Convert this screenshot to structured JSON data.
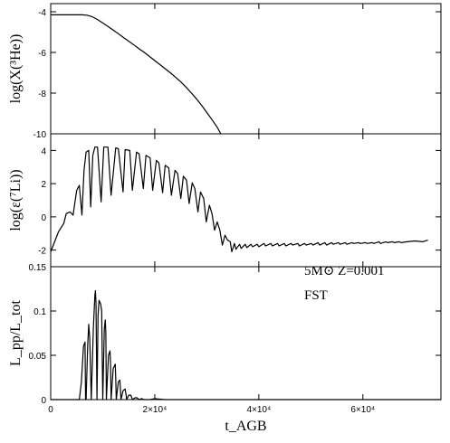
{
  "chart_data": {
    "type": "line",
    "title": "",
    "xlabel": "t_AGB",
    "xlim": [
      0,
      75000
    ],
    "x_ticks": [
      {
        "value": 0,
        "label": "0"
      },
      {
        "value": 20000,
        "label": "2×10⁴"
      },
      {
        "value": 40000,
        "label": "4×10⁴"
      },
      {
        "value": 60000,
        "label": "6×10⁴"
      }
    ],
    "panels": [
      {
        "ylabel": "log(X(³He))",
        "ylim": [
          -10,
          -3.6
        ],
        "y_ticks": [
          {
            "value": -4,
            "label": "-4"
          },
          {
            "value": -6,
            "label": "-6"
          },
          {
            "value": -8,
            "label": "-8"
          },
          {
            "value": -10,
            "label": "-10"
          }
        ],
        "series": [
          {
            "x": [
              0,
              2000,
              4000,
              6000,
              7000,
              8000,
              9000,
              10000,
              11000,
              12000,
              13000,
              14000,
              15000,
              16000,
              17000,
              18000,
              19000,
              20000,
              21000,
              22000,
              23000,
              24000,
              25000,
              26000,
              27000,
              28000,
              29000,
              30000,
              31000,
              32000,
              32700
            ],
            "y": [
              -4.15,
              -4.15,
              -4.15,
              -4.15,
              -4.17,
              -4.25,
              -4.38,
              -4.55,
              -4.72,
              -4.9,
              -5.08,
              -5.27,
              -5.45,
              -5.63,
              -5.82,
              -6.0,
              -6.2,
              -6.4,
              -6.6,
              -6.8,
              -7.0,
              -7.22,
              -7.45,
              -7.7,
              -7.98,
              -8.28,
              -8.6,
              -8.95,
              -9.3,
              -9.68,
              -10.0
            ]
          }
        ]
      },
      {
        "ylabel": "log(ε(⁷Li))",
        "ylim": [
          -3,
          5
        ],
        "y_ticks": [
          {
            "value": 4,
            "label": "4"
          },
          {
            "value": 2,
            "label": "2"
          },
          {
            "value": 0,
            "label": "0"
          },
          {
            "value": -2,
            "label": "-2"
          }
        ],
        "series": [
          {
            "x": [
              0,
              500,
              1500,
              2500,
              3000,
              3700,
              4300,
              5000,
              5500,
              6000,
              6400,
              6800,
              7300,
              7700,
              8100,
              8500,
              9000,
              9700,
              10200,
              11000,
              11600,
              12500,
              13000,
              13900,
              14300,
              15200,
              15700,
              16500,
              17000,
              17800,
              18300,
              19100,
              19600,
              20300,
              20800,
              21500,
              22000,
              22700,
              23200,
              23900,
              24400,
              25000,
              25500,
              26100,
              26600,
              27200,
              27700,
              28300,
              28800,
              29400,
              29900,
              30500,
              31000,
              31500,
              32000,
              32500,
              33000,
              33500,
              34000,
              34500,
              34800,
              35300,
              35600,
              36300,
              36600,
              37400,
              37700,
              38500,
              38800,
              39700,
              40000,
              41000,
              41300,
              42300,
              42600,
              43600,
              43900,
              44900,
              45200,
              46200,
              46500,
              47500,
              47800,
              48800,
              49100,
              50100,
              50400,
              51400,
              51700,
              52700,
              53000,
              54000,
              54300,
              55300,
              55600,
              56600,
              56900,
              57900,
              58200,
              59200,
              59500,
              60500,
              60800,
              61800,
              62100,
              63100,
              63400,
              64400,
              64700,
              65700,
              66000,
              67000,
              67300,
              68500,
              70000,
              71500,
              72500
            ],
            "y": [
              -2.1,
              -1.7,
              -0.9,
              -0.4,
              0.2,
              0.3,
              0.1,
              1.6,
              1.9,
              0.1,
              2.8,
              3.9,
              4.0,
              0.6,
              3.7,
              4.2,
              4.2,
              0.9,
              4.2,
              4.2,
              1.3,
              4.15,
              4.1,
              1.5,
              4.05,
              4.0,
              1.6,
              3.9,
              3.8,
              1.7,
              3.7,
              3.55,
              1.6,
              3.4,
              3.25,
              1.45,
              3.1,
              2.95,
              1.3,
              2.8,
              2.6,
              1.1,
              2.45,
              2.2,
              0.8,
              2.05,
              1.7,
              0.3,
              1.5,
              1.1,
              -0.3,
              0.7,
              0.2,
              -0.8,
              -0.3,
              -0.8,
              -1.7,
              -1.1,
              -1.4,
              -1.5,
              -2.1,
              -1.6,
              -1.95,
              -1.65,
              -1.9,
              -1.65,
              -1.85,
              -1.65,
              -1.8,
              -1.65,
              -1.8,
              -1.6,
              -1.75,
              -1.6,
              -1.75,
              -1.6,
              -1.75,
              -1.6,
              -1.75,
              -1.6,
              -1.7,
              -1.6,
              -1.75,
              -1.6,
              -1.7,
              -1.6,
              -1.7,
              -1.55,
              -1.7,
              -1.55,
              -1.7,
              -1.55,
              -1.65,
              -1.55,
              -1.65,
              -1.55,
              -1.65,
              -1.55,
              -1.6,
              -1.55,
              -1.6,
              -1.55,
              -1.6,
              -1.55,
              -1.6,
              -1.5,
              -1.6,
              -1.5,
              -1.55,
              -1.5,
              -1.55,
              -1.5,
              -1.55,
              -1.5,
              -1.45,
              -1.5,
              -1.4
            ]
          }
        ]
      },
      {
        "ylabel": "L_pp/L_tot",
        "ylim": [
          0,
          0.15
        ],
        "y_ticks": [
          {
            "value": 0.15,
            "label": "0.15"
          },
          {
            "value": 0.1,
            "label": "0.1"
          },
          {
            "value": 0.05,
            "label": "0.05"
          },
          {
            "value": 0,
            "label": "0"
          }
        ],
        "series": [
          {
            "x": [
              0,
              5500,
              5900,
              6300,
              6600,
              6700,
              6800,
              7100,
              7300,
              7500,
              7800,
              8200,
              8500,
              8600,
              8700,
              8900,
              9100,
              9300,
              9600,
              9800,
              10000,
              10300,
              10500,
              10600,
              10700,
              11100,
              11400,
              11500,
              11600,
              12000,
              12400,
              12500,
              12600,
              13000,
              13300,
              13400,
              13500,
              13900,
              14300,
              14500,
              14600,
              15000,
              15400,
              15600,
              15700,
              16200,
              16600,
              16800,
              16900,
              17500,
              18000,
              19000,
              20000,
              22000,
              30000,
              75000
            ],
            "y": [
              0,
              0,
              0.02,
              0.06,
              0.065,
              0,
              0,
              0.06,
              0.085,
              0.07,
              0,
              0.08,
              0.118,
              0.123,
              0.11,
              0,
              0.095,
              0.112,
              0.108,
              0.1,
              0,
              0.08,
              0.09,
              0.075,
              0,
              0.05,
              0.055,
              0.04,
              0,
              0.035,
              0.04,
              0.025,
              0,
              0.02,
              0.022,
              0.012,
              0,
              0.01,
              0.012,
              0.005,
              0,
              0.005,
              0.005,
              0.002,
              0,
              0.002,
              0.002,
              0.001,
              0,
              0.001,
              0,
              0,
              0.001,
              0,
              0,
              0
            ]
          }
        ]
      }
    ],
    "annotations": [
      {
        "text": "5M⊙  Z=0.001"
      },
      {
        "text": "FST"
      }
    ]
  }
}
